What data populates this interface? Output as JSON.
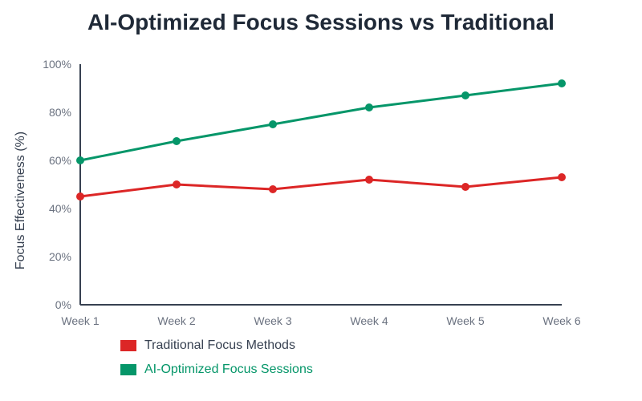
{
  "chart_data": {
    "type": "line",
    "title": "AI-Optimized Focus Sessions vs Traditional",
    "xlabel": "",
    "ylabel": "Focus Effectiveness (%)",
    "categories": [
      "Week 1",
      "Week 2",
      "Week 3",
      "Week 4",
      "Week 5",
      "Week 6"
    ],
    "ylim": [
      0,
      100
    ],
    "yticks": [
      0,
      20,
      40,
      60,
      80,
      100
    ],
    "ytick_labels": [
      "0%",
      "20%",
      "40%",
      "60%",
      "80%",
      "100%"
    ],
    "grid": false,
    "legend_position": "bottom-left",
    "series": [
      {
        "name": "Traditional Focus Methods",
        "color": "#dc2626",
        "label_color": "#374151",
        "values": [
          45,
          50,
          48,
          52,
          49,
          53
        ]
      },
      {
        "name": "AI-Optimized Focus Sessions",
        "color": "#059669",
        "label_color": "#059669",
        "values": [
          60,
          68,
          75,
          82,
          87,
          92
        ]
      }
    ]
  }
}
